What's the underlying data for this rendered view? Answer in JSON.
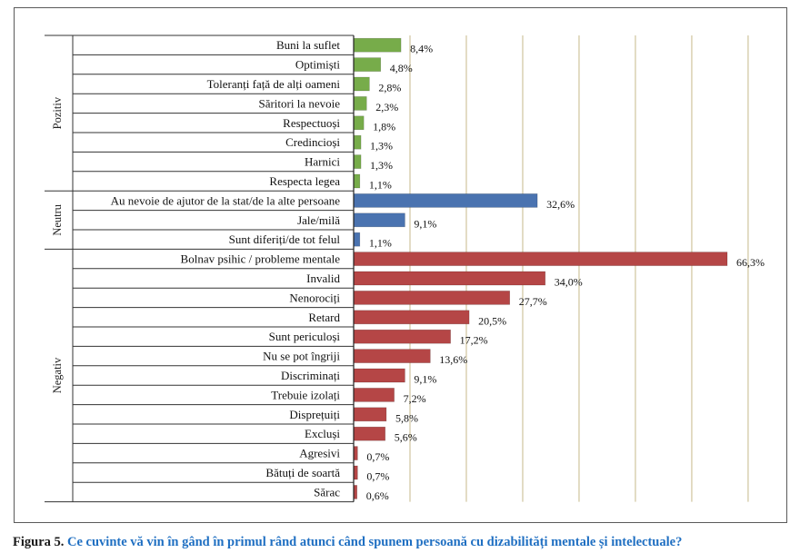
{
  "chart_data": {
    "type": "bar",
    "orientation": "horizontal",
    "groups": [
      {
        "name": "Pozitiv",
        "color": "#77ac4a",
        "items": [
          {
            "label": "Buni la suflet",
            "value": 8.4,
            "value_label": "8,4%"
          },
          {
            "label": "Optimiști",
            "value": 4.8,
            "value_label": "4,8%"
          },
          {
            "label": "Toleranți față de alți oameni",
            "value": 2.8,
            "value_label": "2,8%"
          },
          {
            "label": "Săritori la nevoie",
            "value": 2.3,
            "value_label": "2,3%"
          },
          {
            "label": "Respectuoși",
            "value": 1.8,
            "value_label": "1,8%"
          },
          {
            "label": "Credincioși",
            "value": 1.3,
            "value_label": "1,3%"
          },
          {
            "label": "Harnici",
            "value": 1.3,
            "value_label": "1,3%"
          },
          {
            "label": "Respecta legea",
            "value": 1.1,
            "value_label": "1,1%"
          }
        ]
      },
      {
        "name": "Neutru",
        "color": "#4a73b0",
        "items": [
          {
            "label": "Au nevoie de ajutor de la stat/de la alte persoane",
            "value": 32.6,
            "value_label": "32,6%"
          },
          {
            "label": "Jale/milă",
            "value": 9.1,
            "value_label": "9,1%"
          },
          {
            "label": "Sunt diferiți/de tot felul",
            "value": 1.1,
            "value_label": "1,1%"
          }
        ]
      },
      {
        "name": "Negativ",
        "color": "#b54646",
        "items": [
          {
            "label": "Bolnav  psihic / probleme mentale",
            "value": 66.3,
            "value_label": "66,3%"
          },
          {
            "label": "Invalid",
            "value": 34.0,
            "value_label": "34,0%"
          },
          {
            "label": "Nenorociți",
            "value": 27.7,
            "value_label": "27,7%"
          },
          {
            "label": "Retard",
            "value": 20.5,
            "value_label": "20,5%"
          },
          {
            "label": "Sunt periculoși",
            "value": 17.2,
            "value_label": "17,2%"
          },
          {
            "label": "Nu se pot îngriji",
            "value": 13.6,
            "value_label": "13,6%"
          },
          {
            "label": "Discriminați",
            "value": 9.1,
            "value_label": "9,1%"
          },
          {
            "label": "Trebuie izolați",
            "value": 7.2,
            "value_label": "7,2%"
          },
          {
            "label": "Disprețuiți",
            "value": 5.8,
            "value_label": "5,8%"
          },
          {
            "label": "Excluși",
            "value": 5.6,
            "value_label": "5,6%"
          },
          {
            "label": "Agresivi",
            "value": 0.7,
            "value_label": "0,7%"
          },
          {
            "label": "Bătuți de soartă",
            "value": 0.7,
            "value_label": "0,7%"
          },
          {
            "label": "Sărac",
            "value": 0.6,
            "value_label": "0,6%"
          }
        ]
      }
    ],
    "xlim": [
      0,
      70
    ],
    "gridlines_every": 10,
    "grid": true,
    "legend": "none",
    "grid_color": "#c6b98a"
  },
  "caption": {
    "label": "Figura 5.",
    "text": "Ce cuvinte vă vin în gând în primul rând atunci când spunem persoană cu dizabilități mentale și intelectuale?"
  }
}
